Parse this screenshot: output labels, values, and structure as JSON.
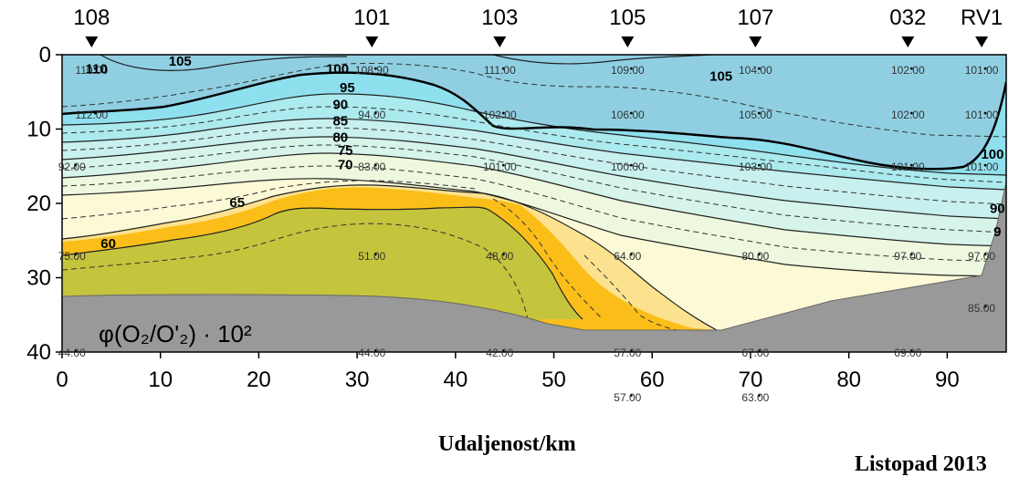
{
  "chart_data": {
    "type": "heatmap",
    "title": "",
    "xlabel": "Udaljenost/km",
    "ylabel": "",
    "date_label": "Listopad 2013",
    "panel_label": "φ(O₂/O'₂) · 10²",
    "x_ticks": [
      "0",
      "10",
      "20",
      "30",
      "40",
      "50",
      "60",
      "70",
      "80",
      "90"
    ],
    "y_ticks": [
      "0",
      "10",
      "20",
      "30",
      "40"
    ],
    "xlim": [
      0,
      96
    ],
    "ylim": [
      40,
      0
    ],
    "stations": [
      {
        "name": "108",
        "x": 3
      },
      {
        "name": "101",
        "x": 31.5
      },
      {
        "name": "103",
        "x": 44.5
      },
      {
        "name": "105",
        "x": 57.5
      },
      {
        "name": "107",
        "x": 70.5
      },
      {
        "name": "032",
        "x": 86
      },
      {
        "name": "RV1",
        "x": 93.5
      }
    ],
    "sample_labels": [
      {
        "x": 3,
        "y": 1,
        "text": "110.00"
      },
      {
        "x": 3,
        "y": 7,
        "text": "112.00"
      },
      {
        "x": 1,
        "y": 14,
        "text": "92.00"
      },
      {
        "x": 1,
        "y": 26,
        "text": "75.00"
      },
      {
        "x": 1,
        "y": 39,
        "text": "44.00"
      },
      {
        "x": 31.5,
        "y": 1,
        "text": "108.90"
      },
      {
        "x": 31.5,
        "y": 7,
        "text": "94.00"
      },
      {
        "x": 31.5,
        "y": 14,
        "text": "83.00"
      },
      {
        "x": 31.5,
        "y": 26,
        "text": "51.00"
      },
      {
        "x": 31.5,
        "y": 39,
        "text": "44.00"
      },
      {
        "x": 44.5,
        "y": 1,
        "text": "111.00"
      },
      {
        "x": 44.5,
        "y": 7,
        "text": "102.00"
      },
      {
        "x": 44.5,
        "y": 14,
        "text": "101.00"
      },
      {
        "x": 44.5,
        "y": 26,
        "text": "48.00"
      },
      {
        "x": 44.5,
        "y": 39,
        "text": "42.00"
      },
      {
        "x": 57.5,
        "y": 1,
        "text": "109.00"
      },
      {
        "x": 57.5,
        "y": 7,
        "text": "106.00"
      },
      {
        "x": 57.5,
        "y": 14,
        "text": "100.00"
      },
      {
        "x": 57.5,
        "y": 26,
        "text": "64.00"
      },
      {
        "x": 57.5,
        "y": 39,
        "text": "57.00"
      },
      {
        "x": 57.5,
        "y": 45,
        "text": "57.00"
      },
      {
        "x": 70.5,
        "y": 1,
        "text": "104.00"
      },
      {
        "x": 70.5,
        "y": 7,
        "text": "105.00"
      },
      {
        "x": 70.5,
        "y": 14,
        "text": "103.00"
      },
      {
        "x": 70.5,
        "y": 26,
        "text": "80.00"
      },
      {
        "x": 70.5,
        "y": 39,
        "text": "67.00"
      },
      {
        "x": 70.5,
        "y": 45,
        "text": "63.00"
      },
      {
        "x": 86,
        "y": 1,
        "text": "102.00"
      },
      {
        "x": 86,
        "y": 7,
        "text": "102.00"
      },
      {
        "x": 86,
        "y": 14,
        "text": "101.00"
      },
      {
        "x": 86,
        "y": 26,
        "text": "97.00"
      },
      {
        "x": 86,
        "y": 39,
        "text": "69.00"
      },
      {
        "x": 93.5,
        "y": 1,
        "text": "101.00"
      },
      {
        "x": 93.5,
        "y": 7,
        "text": "101.00"
      },
      {
        "x": 93.5,
        "y": 14,
        "text": "101.00"
      },
      {
        "x": 93.5,
        "y": 26,
        "text": "97.00"
      },
      {
        "x": 93.5,
        "y": 33,
        "text": "85.00"
      }
    ],
    "contour_labels": [
      {
        "x": 3.5,
        "y": 2.5,
        "text": "110"
      },
      {
        "x": 12,
        "y": 1.5,
        "text": "105"
      },
      {
        "x": 28,
        "y": 2.5,
        "text": "100"
      },
      {
        "x": 29,
        "y": 5,
        "text": "95"
      },
      {
        "x": 28.3,
        "y": 7.3,
        "text": "90"
      },
      {
        "x": 28.3,
        "y": 9.5,
        "text": "85"
      },
      {
        "x": 28.3,
        "y": 11.7,
        "text": "80"
      },
      {
        "x": 28.8,
        "y": 13.5,
        "text": "75"
      },
      {
        "x": 28.8,
        "y": 15.4,
        "text": "70"
      },
      {
        "x": 17.8,
        "y": 20.5,
        "text": "65"
      },
      {
        "x": 4.7,
        "y": 26,
        "text": "60"
      },
      {
        "x": 67,
        "y": 3.5,
        "text": "105"
      },
      {
        "x": 94.6,
        "y": 14,
        "text": "100"
      },
      {
        "x": 95.1,
        "y": 21.3,
        "text": "90"
      },
      {
        "x": 95.1,
        "y": 24.4,
        "text": "9"
      }
    ],
    "color_scale": {
      "above_100": "#90cfe2",
      "95_to_100": "#8fe0ee",
      "85_to_95": "#abeaef",
      "80_to_85": "#c7f0ee",
      "75_to_80": "#d7f4ea",
      "70_to_75": "#eef8de",
      "65_to_70": "#fbf9d6",
      "60_to_65": "#fce28f",
      "50_to_60": "#fbbe19",
      "below_50": "#c5c43d",
      "seafloor": "#999999"
    }
  }
}
